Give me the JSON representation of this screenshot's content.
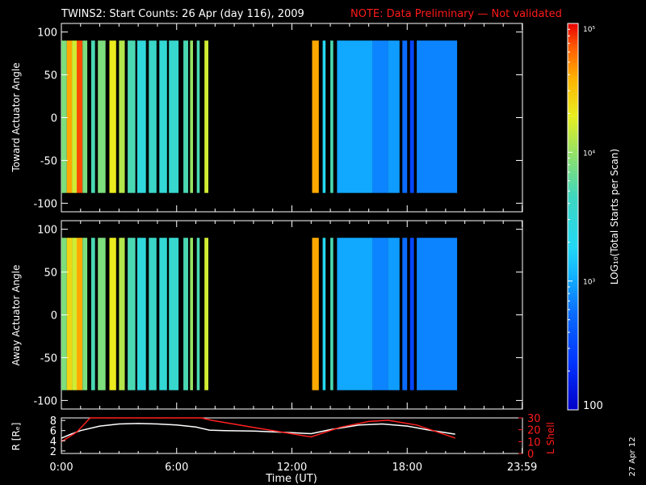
{
  "header": {
    "title": "TWINS2: Start Counts: 26 Apr (day 116), 2009",
    "note": "NOTE: Data Preliminary — Not validated"
  },
  "footer": {
    "date_stamp": "27 Apr 12"
  },
  "colorbar": {
    "label": "LOG₁₀(Total Starts per Scan)",
    "tick_labels": [
      "100",
      "10³",
      "10⁴",
      "10⁵"
    ],
    "tick_values": [
      100,
      1000,
      10000,
      100000
    ],
    "range": [
      100,
      100000
    ]
  },
  "colors": {
    "note": "#ff1a1a",
    "rline": "#ffffff",
    "lshell": "#ff2020"
  },
  "chart_data": [
    {
      "type": "heatmap",
      "ylabel": "Toward Actuator Angle",
      "ylim": [
        -110,
        110
      ],
      "yticks": [
        100,
        50,
        0,
        -50,
        -100
      ],
      "xlim": [
        0,
        24
      ],
      "columns": [
        {
          "t0": 0.0,
          "t1": 0.28,
          "log": 3.9
        },
        {
          "t0": 0.28,
          "t1": 0.55,
          "log": 4.6
        },
        {
          "t0": 0.55,
          "t1": 0.8,
          "log": 4.2
        },
        {
          "t0": 0.8,
          "t1": 1.1,
          "log": 4.85
        },
        {
          "t0": 1.1,
          "t1": 1.35,
          "log": 3.9
        },
        {
          "t0": 1.55,
          "t1": 1.75,
          "log": 3.7
        },
        {
          "t0": 1.9,
          "t1": 2.3,
          "log": 3.9
        },
        {
          "t0": 2.5,
          "t1": 2.85,
          "log": 4.3
        },
        {
          "t0": 3.0,
          "t1": 3.3,
          "log": 4.1
        },
        {
          "t0": 3.45,
          "t1": 3.85,
          "log": 3.7
        },
        {
          "t0": 3.95,
          "t1": 4.4,
          "log": 3.45
        },
        {
          "t0": 4.55,
          "t1": 4.95,
          "log": 3.6
        },
        {
          "t0": 5.1,
          "t1": 5.5,
          "log": 3.5
        },
        {
          "t0": 5.6,
          "t1": 6.1,
          "log": 3.55
        },
        {
          "t0": 6.35,
          "t1": 6.6,
          "log": 3.7
        },
        {
          "t0": 6.7,
          "t1": 6.85,
          "log": 4.0
        },
        {
          "t0": 7.05,
          "t1": 7.2,
          "log": 3.7
        },
        {
          "t0": 7.45,
          "t1": 7.65,
          "log": 4.2
        },
        {
          "t0": 13.05,
          "t1": 13.4,
          "log": 4.6
        },
        {
          "t0": 13.6,
          "t1": 13.75,
          "log": 3.3
        },
        {
          "t0": 14.0,
          "t1": 14.15,
          "log": 3.7
        },
        {
          "t0": 14.35,
          "t1": 16.2,
          "log": 3.0
        },
        {
          "t0": 16.2,
          "t1": 17.0,
          "log": 2.85
        },
        {
          "t0": 17.0,
          "t1": 17.6,
          "log": 2.95
        },
        {
          "t0": 17.75,
          "t1": 18.0,
          "log": 2.75
        },
        {
          "t0": 18.15,
          "t1": 18.35,
          "log": 2.5
        },
        {
          "t0": 18.5,
          "t1": 20.6,
          "log": 2.85
        }
      ]
    },
    {
      "type": "heatmap",
      "ylabel": "Away Actuator Angle",
      "ylim": [
        -110,
        110
      ],
      "yticks": [
        100,
        50,
        0,
        -50,
        -100
      ],
      "xlim": [
        0,
        24
      ],
      "columns": [
        {
          "t0": 0.0,
          "t1": 0.28,
          "log": 3.9
        },
        {
          "t0": 0.28,
          "t1": 0.55,
          "log": 4.4
        },
        {
          "t0": 0.55,
          "t1": 0.8,
          "log": 4.2
        },
        {
          "t0": 0.8,
          "t1": 1.1,
          "log": 4.6
        },
        {
          "t0": 1.1,
          "t1": 1.35,
          "log": 3.9
        },
        {
          "t0": 1.55,
          "t1": 1.75,
          "log": 3.7
        },
        {
          "t0": 1.9,
          "t1": 2.3,
          "log": 3.9
        },
        {
          "t0": 2.5,
          "t1": 2.85,
          "log": 4.3
        },
        {
          "t0": 3.0,
          "t1": 3.3,
          "log": 4.1
        },
        {
          "t0": 3.45,
          "t1": 3.85,
          "log": 3.7
        },
        {
          "t0": 3.95,
          "t1": 4.4,
          "log": 3.45
        },
        {
          "t0": 4.55,
          "t1": 4.95,
          "log": 3.6
        },
        {
          "t0": 5.1,
          "t1": 5.5,
          "log": 3.5
        },
        {
          "t0": 5.6,
          "t1": 6.1,
          "log": 3.55
        },
        {
          "t0": 6.35,
          "t1": 6.6,
          "log": 3.7
        },
        {
          "t0": 6.7,
          "t1": 6.85,
          "log": 4.0
        },
        {
          "t0": 7.05,
          "t1": 7.2,
          "log": 3.7
        },
        {
          "t0": 7.45,
          "t1": 7.65,
          "log": 4.2
        },
        {
          "t0": 13.05,
          "t1": 13.4,
          "log": 4.6
        },
        {
          "t0": 13.6,
          "t1": 13.75,
          "log": 3.3
        },
        {
          "t0": 14.0,
          "t1": 14.15,
          "log": 3.7
        },
        {
          "t0": 14.35,
          "t1": 16.2,
          "log": 3.0
        },
        {
          "t0": 16.2,
          "t1": 17.0,
          "log": 2.85
        },
        {
          "t0": 17.0,
          "t1": 17.6,
          "log": 2.95
        },
        {
          "t0": 17.75,
          "t1": 18.0,
          "log": 2.75
        },
        {
          "t0": 18.15,
          "t1": 18.35,
          "log": 2.5
        },
        {
          "t0": 18.5,
          "t1": 20.6,
          "log": 2.85
        }
      ]
    },
    {
      "type": "line",
      "xlabel": "Time (UT)",
      "ylabel": "R [Rₑ]",
      "y2label": "L Shell",
      "xlim": [
        0,
        24
      ],
      "ylim": [
        1.5,
        8.5
      ],
      "yticks": [
        2,
        4,
        6,
        8
      ],
      "y2lim": [
        0,
        30
      ],
      "y2ticks": [
        0,
        10,
        20,
        30
      ],
      "xticks": [
        {
          "value": 0,
          "label": "0:00"
        },
        {
          "value": 6,
          "label": "6:00"
        },
        {
          "value": 12,
          "label": "12:00"
        },
        {
          "value": 18,
          "label": "18:00"
        },
        {
          "value": 23.983,
          "label": "23:59"
        }
      ],
      "series": [
        {
          "axis": "left",
          "x": [
            0.0,
            0.5,
            1.0,
            2.0,
            3.0,
            4.0,
            5.0,
            6.0,
            7.0,
            7.7,
            8.5,
            10.0,
            12.0,
            13.0,
            14.0,
            15.5,
            16.7,
            18.0,
            19.0,
            20.5
          ],
          "values": [
            4.5,
            5.3,
            6.0,
            6.9,
            7.3,
            7.4,
            7.3,
            7.1,
            6.7,
            6.1,
            6.0,
            5.9,
            5.6,
            5.4,
            6.2,
            7.1,
            7.3,
            6.9,
            6.2,
            5.3
          ]
        },
        {
          "axis": "right",
          "x": [
            0.0,
            0.8,
            1.5,
            1.6,
            7.3,
            7.8,
            10.0,
            13.0,
            14.5,
            16.0,
            17.0,
            18.5,
            20.5
          ],
          "values": [
            10.0,
            18.0,
            30.0,
            31.0,
            31.0,
            28.0,
            22.0,
            14.0,
            22.0,
            27.0,
            28.0,
            24.0,
            13.0
          ]
        }
      ]
    }
  ]
}
